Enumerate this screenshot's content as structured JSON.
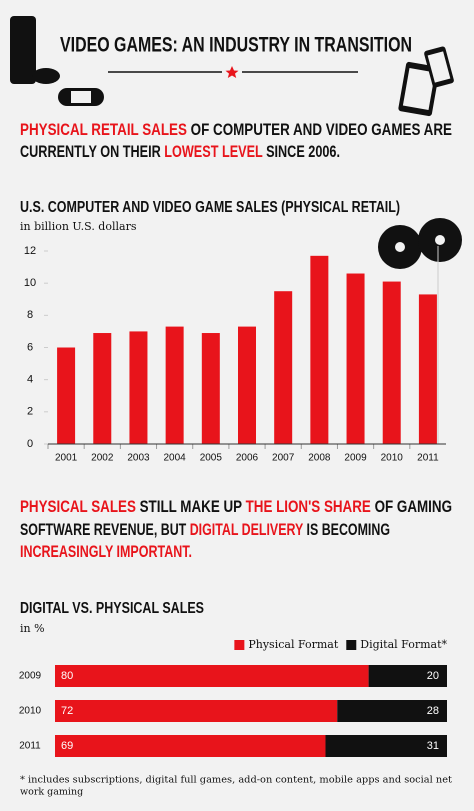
{
  "title": "VIDEO GAMES: AN INDUSTRY IN TRANSITION",
  "highlight_color": "#e8141b",
  "intro": [
    [
      {
        "text": "PHYSICAL RETAIL SALES",
        "highlight": true
      },
      {
        "text": " OF COMPUTER AND VIDEO GAMES ARE",
        "highlight": false
      }
    ],
    [
      {
        "text": "CURRENTLY ON THEIR ",
        "highlight": false
      },
      {
        "text": "LOWEST LEVEL",
        "highlight": true
      },
      {
        "text": " SINCE 2006.",
        "highlight": false
      }
    ]
  ],
  "statement": [
    [
      {
        "text": "PHYSICAL SALES",
        "highlight": true
      },
      {
        "text": " STILL MAKE UP ",
        "highlight": false
      },
      {
        "text": "THE LION'S SHARE",
        "highlight": true
      },
      {
        "text": " OF GAMING",
        "highlight": false
      }
    ],
    [
      {
        "text": "SOFTWARE REVENUE, BUT ",
        "highlight": false
      },
      {
        "text": "DIGITAL DELIVERY",
        "highlight": true
      },
      {
        "text": " IS BECOMING",
        "highlight": false
      }
    ],
    [
      {
        "text": "INCREASINGLY IMPORTANT.",
        "highlight": true
      }
    ]
  ],
  "chart_data": [
    {
      "type": "bar",
      "title": "U.S. COMPUTER AND VIDEO GAME SALES (PHYSICAL RETAIL)",
      "subtitle": "in billion U.S. dollars",
      "categories": [
        "2001",
        "2002",
        "2003",
        "2004",
        "2005",
        "2006",
        "2007",
        "2008",
        "2009",
        "2010",
        "2011"
      ],
      "values": [
        6.0,
        6.9,
        7.0,
        7.3,
        6.9,
        7.3,
        9.5,
        11.7,
        10.6,
        10.1,
        9.3
      ],
      "color": "#e8141b",
      "ylim": [
        0,
        12
      ],
      "yticks": [
        0,
        2,
        4,
        6,
        8,
        10,
        12
      ]
    },
    {
      "type": "stacked_bar",
      "orientation": "horizontal",
      "title": "DIGITAL VS. PHYSICAL SALES",
      "subtitle": "in %",
      "categories": [
        "2009",
        "2010",
        "2011"
      ],
      "series": [
        {
          "name": "Physical Format",
          "color": "#e8141b",
          "values": [
            80,
            72,
            69
          ]
        },
        {
          "name": "Digital Format*",
          "color": "#111111",
          "values": [
            20,
            28,
            31
          ]
        }
      ],
      "xlim": [
        0,
        100
      ],
      "data_labels": true
    }
  ],
  "footnote": [
    "* includes subscriptions, digital full games, add-on content, mobile apps and social net",
    "work gaming"
  ]
}
